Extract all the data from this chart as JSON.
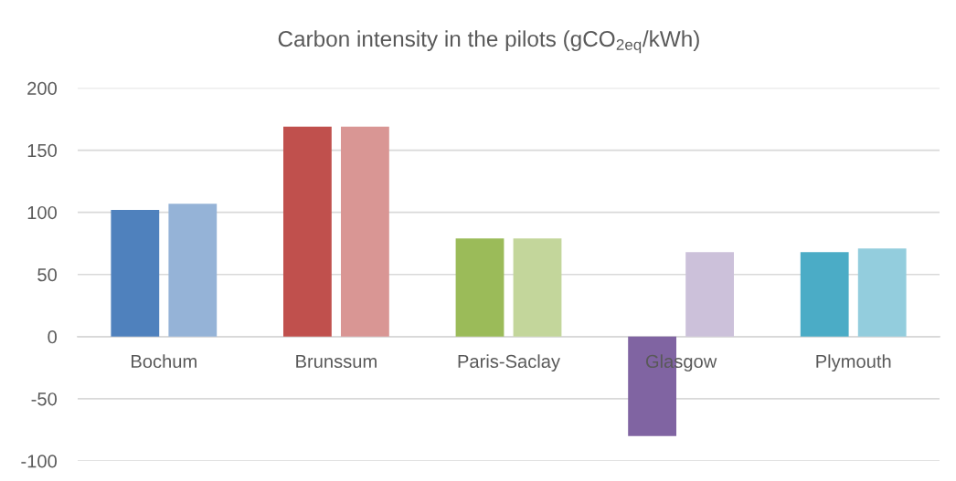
{
  "chart_data": {
    "type": "bar",
    "title": "Carbon intensity in the pilots (gCO$_{2eq}$/kWh)",
    "categories": [
      "Bochum",
      "Brunssum",
      "Paris-Saclay",
      "Glasgow",
      "Plymouth"
    ],
    "series": [
      {
        "colors": [
          "#4f81bd",
          "#c0504d",
          "#9bbb59",
          "#8064a2",
          "#4bacc6"
        ],
        "values": [
          102,
          169,
          79,
          -80,
          68
        ]
      },
      {
        "colors": [
          "#95b3d7",
          "#d99694",
          "#c3d69b",
          "#ccc1da",
          "#93cddd"
        ],
        "values": [
          107,
          169,
          79,
          68,
          71
        ]
      }
    ],
    "ylim": [
      -100,
      200
    ],
    "yticks": [
      -100,
      -50,
      0,
      50,
      100,
      150,
      200
    ],
    "grid": "y"
  }
}
